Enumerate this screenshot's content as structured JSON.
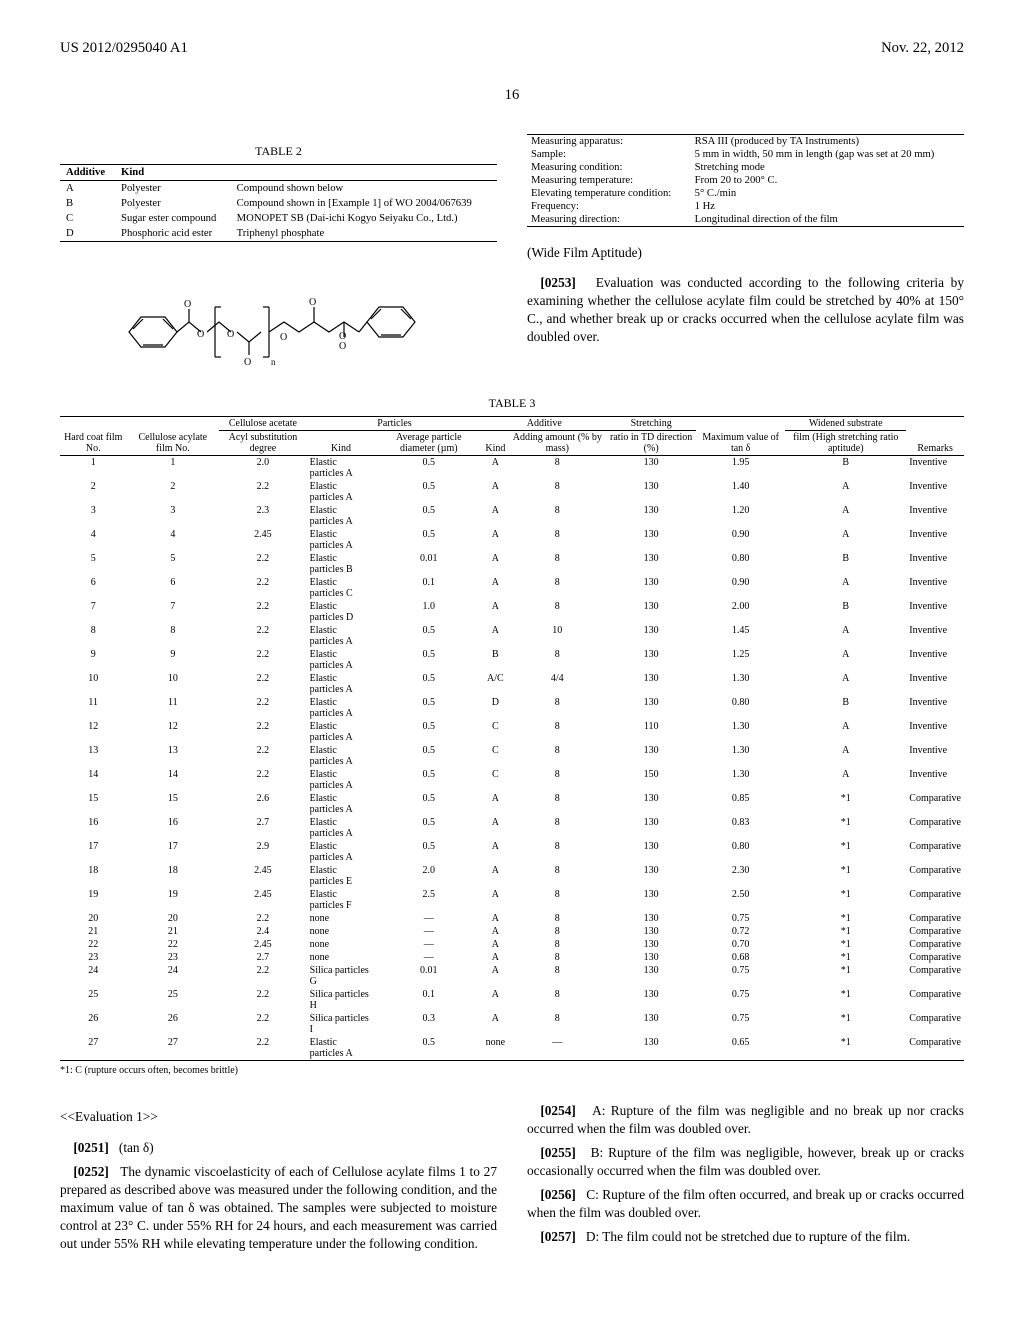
{
  "header": {
    "left": "US 2012/0295040 A1",
    "right": "Nov. 22, 2012"
  },
  "page_number": "16",
  "table2": {
    "title": "TABLE 2",
    "cols": [
      "Additive",
      "Kind",
      ""
    ],
    "rows": [
      [
        "A",
        "Polyester",
        "Compound shown below"
      ],
      [
        "B",
        "Polyester",
        "Compound shown in [Example 1] of WO 2004/067639"
      ],
      [
        "C",
        "Sugar ester compound",
        "MONOPET SB (Dai-ichi Kogyo Seiyaku Co., Ltd.)"
      ],
      [
        "D",
        "Phosphoric acid ester",
        "Triphenyl phosphate"
      ]
    ]
  },
  "conditions": {
    "rows": [
      [
        "Measuring apparatus:",
        "RSA III (produced by TA Instruments)"
      ],
      [
        "Sample:",
        "5 mm in width, 50 mm in length (gap was set at 20 mm)"
      ],
      [
        "Measuring condition:",
        "Stretching mode"
      ],
      [
        "Measuring temperature:",
        "From 20 to 200° C."
      ],
      [
        "Elevating temperature condition:",
        "5° C./min"
      ],
      [
        "Frequency:",
        "1 Hz"
      ],
      [
        "Measuring direction:",
        "Longitudinal direction of the film"
      ]
    ]
  },
  "wide_film_head": "(Wide Film Aptitude)",
  "p0253": {
    "label": "[0253]",
    "text": "Evaluation was conducted according to the following criteria by examining whether the cellulose acylate film could be stretched by 40% at 150° C., and whether break up or cracks occurred when the cellulose acylate film was doubled over."
  },
  "table3": {
    "title": "TABLE 3",
    "group_headers": {
      "ca": "Cellulose acetate",
      "particles": "Particles",
      "additive": "Additive",
      "stretching": "Stretching",
      "widened": "Widened substrate"
    },
    "col_headers": [
      "Hard coat film No.",
      "Cellulose acylate film No.",
      "Acyl substi­tution degree",
      "Kind",
      "Average particle diameter (µm)",
      "Kind",
      "Adding amount (% by mass)",
      "ratio in TD direction (%)",
      "Maximum value of tan δ",
      "film (High stretching ratio aptitude)",
      "Remarks"
    ],
    "rows": [
      [
        "1",
        "1",
        "2.0",
        "Elastic particles A",
        "0.5",
        "A",
        "8",
        "130",
        "1.95",
        "B",
        "Inventive"
      ],
      [
        "2",
        "2",
        "2.2",
        "Elastic particles A",
        "0.5",
        "A",
        "8",
        "130",
        "1.40",
        "A",
        "Inventive"
      ],
      [
        "3",
        "3",
        "2.3",
        "Elastic particles A",
        "0.5",
        "A",
        "8",
        "130",
        "1.20",
        "A",
        "Inventive"
      ],
      [
        "4",
        "4",
        "2.45",
        "Elastic particles A",
        "0.5",
        "A",
        "8",
        "130",
        "0.90",
        "A",
        "Inventive"
      ],
      [
        "5",
        "5",
        "2.2",
        "Elastic particles B",
        "0.01",
        "A",
        "8",
        "130",
        "0.80",
        "B",
        "Inventive"
      ],
      [
        "6",
        "6",
        "2.2",
        "Elastic particles C",
        "0.1",
        "A",
        "8",
        "130",
        "0.90",
        "A",
        "Inventive"
      ],
      [
        "7",
        "7",
        "2.2",
        "Elastic particles D",
        "1.0",
        "A",
        "8",
        "130",
        "2.00",
        "B",
        "Inventive"
      ],
      [
        "8",
        "8",
        "2.2",
        "Elastic particles A",
        "0.5",
        "A",
        "10",
        "130",
        "1.45",
        "A",
        "Inventive"
      ],
      [
        "9",
        "9",
        "2.2",
        "Elastic particles A",
        "0.5",
        "B",
        "8",
        "130",
        "1.25",
        "A",
        "Inventive"
      ],
      [
        "10",
        "10",
        "2.2",
        "Elastic particles A",
        "0.5",
        "A/C",
        "4/4",
        "130",
        "1.30",
        "A",
        "Inventive"
      ],
      [
        "11",
        "11",
        "2.2",
        "Elastic particles A",
        "0.5",
        "D",
        "8",
        "130",
        "0.80",
        "B",
        "Inventive"
      ],
      [
        "12",
        "12",
        "2.2",
        "Elastic particles A",
        "0.5",
        "C",
        "8",
        "110",
        "1.30",
        "A",
        "Inventive"
      ],
      [
        "13",
        "13",
        "2.2",
        "Elastic particles A",
        "0.5",
        "C",
        "8",
        "130",
        "1.30",
        "A",
        "Inventive"
      ],
      [
        "14",
        "14",
        "2.2",
        "Elastic particles A",
        "0.5",
        "C",
        "8",
        "150",
        "1.30",
        "A",
        "Inventive"
      ],
      [
        "15",
        "15",
        "2.6",
        "Elastic particles A",
        "0.5",
        "A",
        "8",
        "130",
        "0.85",
        "*1",
        "Comparative"
      ],
      [
        "16",
        "16",
        "2.7",
        "Elastic particles A",
        "0.5",
        "A",
        "8",
        "130",
        "0.83",
        "*1",
        "Comparative"
      ],
      [
        "17",
        "17",
        "2.9",
        "Elastic particles A",
        "0.5",
        "A",
        "8",
        "130",
        "0.80",
        "*1",
        "Comparative"
      ],
      [
        "18",
        "18",
        "2.45",
        "Elastic particles E",
        "2.0",
        "A",
        "8",
        "130",
        "2.30",
        "*1",
        "Comparative"
      ],
      [
        "19",
        "19",
        "2.45",
        "Elastic particles F",
        "2.5",
        "A",
        "8",
        "130",
        "2.50",
        "*1",
        "Comparative"
      ],
      [
        "20",
        "20",
        "2.2",
        "none",
        "—",
        "A",
        "8",
        "130",
        "0.75",
        "*1",
        "Comparative"
      ],
      [
        "21",
        "21",
        "2.4",
        "none",
        "—",
        "A",
        "8",
        "130",
        "0.72",
        "*1",
        "Comparative"
      ],
      [
        "22",
        "22",
        "2.45",
        "none",
        "—",
        "A",
        "8",
        "130",
        "0.70",
        "*1",
        "Comparative"
      ],
      [
        "23",
        "23",
        "2.7",
        "none",
        "—",
        "A",
        "8",
        "130",
        "0.68",
        "*1",
        "Comparative"
      ],
      [
        "24",
        "24",
        "2.2",
        "Silica particles G",
        "0.01",
        "A",
        "8",
        "130",
        "0.75",
        "*1",
        "Comparative"
      ],
      [
        "25",
        "25",
        "2.2",
        "Silica particles H",
        "0.1",
        "A",
        "8",
        "130",
        "0.75",
        "*1",
        "Comparative"
      ],
      [
        "26",
        "26",
        "2.2",
        "Silica particles I",
        "0.3",
        "A",
        "8",
        "130",
        "0.75",
        "*1",
        "Comparative"
      ],
      [
        "27",
        "27",
        "2.2",
        "Elastic particles A",
        "0.5",
        "none",
        "—",
        "130",
        "0.65",
        "*1",
        "Comparative"
      ]
    ],
    "footnote": "*1: C (rupture occurs often, becomes brittle)"
  },
  "eval1": "<<Evaluation 1>>",
  "p0251": {
    "label": "[0251]",
    "text": "(tan δ)"
  },
  "p0252": {
    "label": "[0252]",
    "text": "The dynamic viscoelasticity of each of Cellulose acylate films 1 to 27 prepared as described above was measured under the following condition, and the maximum value of tan δ was obtained. The samples were subjected to moisture control at 23° C. under 55% RH for 24 hours, and each measurement was carried out under 55% RH while elevating temperature under the following condition."
  },
  "p0254": {
    "label": "[0254]",
    "text": "A: Rupture of the film was negligible and no break up nor cracks occurred when the film was doubled over."
  },
  "p0255": {
    "label": "[0255]",
    "text": "B: Rupture of the film was negligible, however, break up or cracks occasionally occurred when the film was doubled over."
  },
  "p0256": {
    "label": "[0256]",
    "text": "C: Rupture of the film often occurred, and break up or cracks occurred when the film was doubled over."
  },
  "p0257": {
    "label": "[0257]",
    "text": "D: The film could not be stretched due to rupture of the film."
  }
}
